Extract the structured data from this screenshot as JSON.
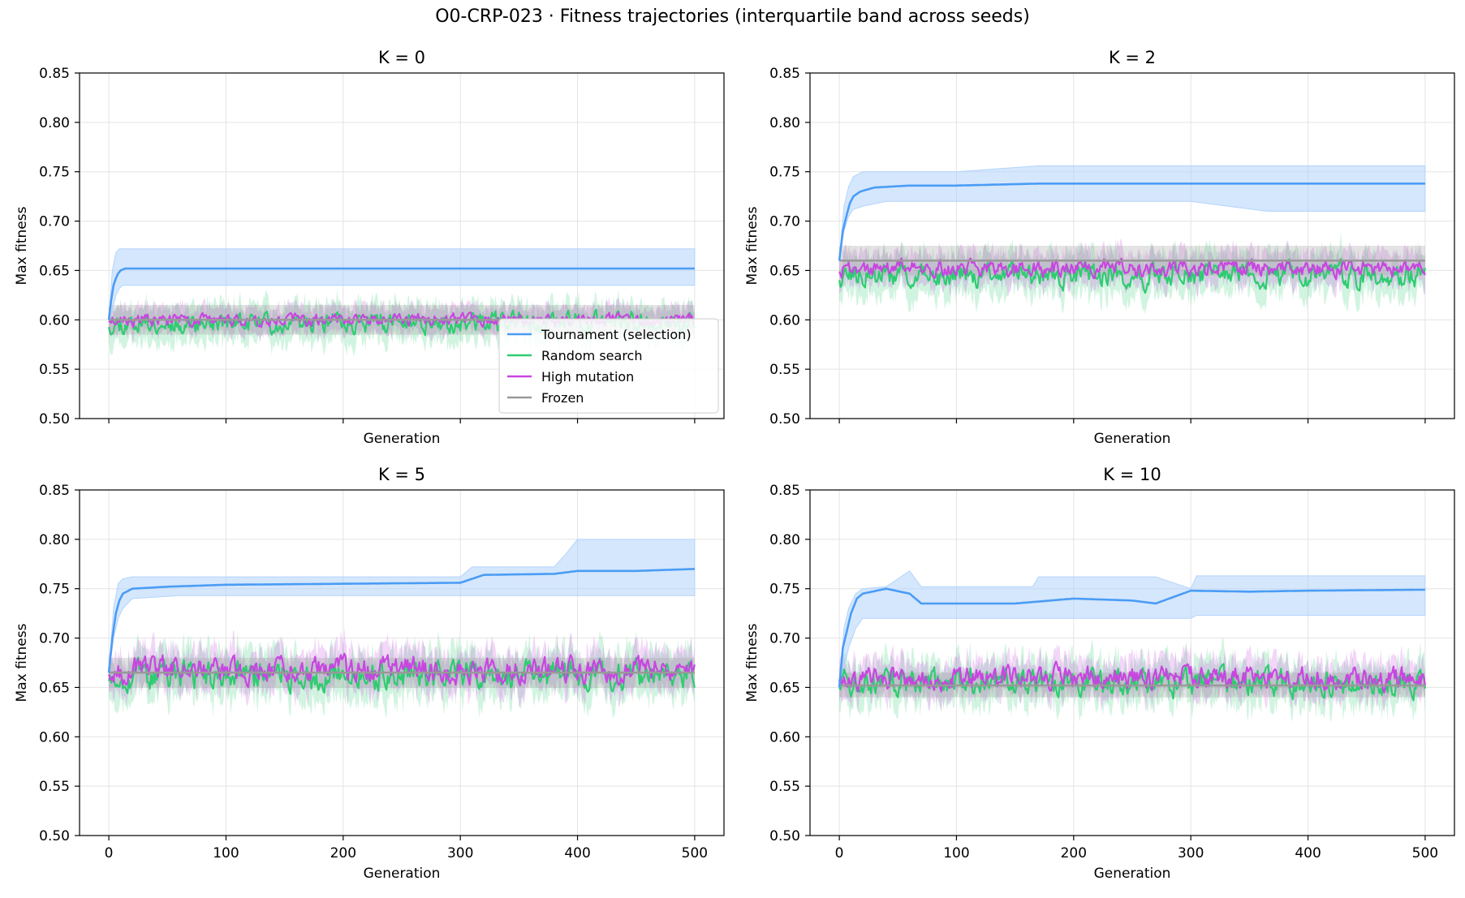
{
  "figure": {
    "title": "O0-CRP-023 · Fitness trajectories (interquartile band across seeds)"
  },
  "colors": {
    "tournament": "#4a9cf5",
    "tournament_band": "#b3d4fb",
    "random": "#2ecc71",
    "high_mutation": "#c846e0",
    "frozen": "#999999",
    "grid": "#e3e3e3"
  },
  "legend": {
    "placement": "lower right (K = 0 panel)",
    "entries": [
      "Tournament (selection)",
      "Random search",
      "High mutation",
      "Frozen"
    ]
  },
  "chart_data": [
    {
      "type": "line",
      "title": "K = 0",
      "xlabel": "Generation",
      "ylabel": "Max fitness",
      "xlim": [
        -25,
        525
      ],
      "ylim": [
        0.5,
        0.85
      ],
      "xticks": [
        0,
        100,
        200,
        300,
        400,
        500
      ],
      "yticks": [
        0.5,
        0.55,
        0.6,
        0.65,
        0.7,
        0.75,
        0.8,
        0.85
      ],
      "show_xtick_labels": false,
      "grid": true,
      "band": {
        "x": [
          0,
          3,
          6,
          9,
          12,
          20,
          500
        ],
        "lower": [
          0.6,
          0.61,
          0.625,
          0.632,
          0.635,
          0.635,
          0.635
        ],
        "upper": [
          0.6,
          0.65,
          0.668,
          0.672,
          0.672,
          0.672,
          0.672
        ]
      },
      "series": [
        {
          "name": "Tournament (selection)",
          "x": [
            0,
            2,
            4,
            6,
            8,
            10,
            14,
            20,
            40,
            100,
            500
          ],
          "y": [
            0.6,
            0.62,
            0.635,
            0.642,
            0.647,
            0.65,
            0.652,
            0.652,
            0.652,
            0.652,
            0.652
          ]
        },
        {
          "name": "Random search",
          "level": 0.597,
          "noise": 0.01,
          "band_noise": 0.022,
          "seed": 11
        },
        {
          "name": "High mutation",
          "level": 0.6,
          "noise": 0.006,
          "band_noise": 0.016,
          "seed": 23
        },
        {
          "name": "Frozen",
          "level": 0.6,
          "band_lower": 0.585,
          "band_upper": 0.615
        }
      ]
    },
    {
      "type": "line",
      "title": "K = 2",
      "xlabel": "Generation",
      "ylabel": "Max fitness",
      "xlim": [
        -25,
        525
      ],
      "ylim": [
        0.5,
        0.85
      ],
      "xticks": [
        0,
        100,
        200,
        300,
        400,
        500
      ],
      "yticks": [
        0.5,
        0.55,
        0.6,
        0.65,
        0.7,
        0.75,
        0.8,
        0.85
      ],
      "show_xtick_labels": false,
      "grid": true,
      "band": {
        "x": [
          0,
          4,
          8,
          12,
          20,
          40,
          100,
          170,
          300,
          365,
          420,
          500
        ],
        "lower": [
          0.66,
          0.69,
          0.705,
          0.712,
          0.715,
          0.72,
          0.72,
          0.72,
          0.72,
          0.71,
          0.71,
          0.71
        ],
        "upper": [
          0.66,
          0.715,
          0.735,
          0.745,
          0.75,
          0.75,
          0.75,
          0.756,
          0.756,
          0.756,
          0.756,
          0.756
        ]
      },
      "series": [
        {
          "name": "Tournament (selection)",
          "x": [
            0,
            3,
            6,
            9,
            12,
            18,
            30,
            60,
            100,
            170,
            300,
            500
          ],
          "y": [
            0.66,
            0.69,
            0.705,
            0.718,
            0.725,
            0.73,
            0.734,
            0.736,
            0.736,
            0.738,
            0.738,
            0.738
          ]
        },
        {
          "name": "Random search",
          "level": 0.645,
          "noise": 0.012,
          "band_noise": 0.025,
          "seed": 37
        },
        {
          "name": "High mutation",
          "level": 0.652,
          "noise": 0.008,
          "band_noise": 0.02,
          "seed": 41
        },
        {
          "name": "Frozen",
          "level": 0.66,
          "band_lower": 0.645,
          "band_upper": 0.675
        }
      ]
    },
    {
      "type": "line",
      "title": "K = 5",
      "xlabel": "Generation",
      "ylabel": "Max fitness",
      "xlim": [
        -25,
        525
      ],
      "ylim": [
        0.5,
        0.85
      ],
      "xticks": [
        0,
        100,
        200,
        300,
        400,
        500
      ],
      "yticks": [
        0.5,
        0.55,
        0.6,
        0.65,
        0.7,
        0.75,
        0.8,
        0.85
      ],
      "show_xtick_labels": true,
      "grid": true,
      "band": {
        "x": [
          0,
          4,
          8,
          12,
          20,
          60,
          300,
          310,
          380,
          390,
          400,
          500
        ],
        "lower": [
          0.665,
          0.7,
          0.72,
          0.73,
          0.74,
          0.743,
          0.743,
          0.743,
          0.743,
          0.743,
          0.743,
          0.743
        ],
        "upper": [
          0.665,
          0.73,
          0.755,
          0.76,
          0.762,
          0.762,
          0.762,
          0.772,
          0.772,
          0.785,
          0.8,
          0.8
        ]
      },
      "series": [
        {
          "name": "Tournament (selection)",
          "x": [
            0,
            3,
            6,
            9,
            12,
            20,
            50,
            100,
            200,
            300,
            310,
            320,
            380,
            400,
            450,
            500
          ],
          "y": [
            0.665,
            0.7,
            0.725,
            0.738,
            0.745,
            0.75,
            0.752,
            0.754,
            0.755,
            0.756,
            0.76,
            0.764,
            0.765,
            0.768,
            0.768,
            0.77
          ]
        },
        {
          "name": "Random search",
          "level": 0.662,
          "noise": 0.014,
          "band_noise": 0.028,
          "seed": 53
        },
        {
          "name": "High mutation",
          "level": 0.668,
          "noise": 0.012,
          "band_noise": 0.024,
          "seed": 67
        },
        {
          "name": "Frozen",
          "level": 0.665,
          "band_lower": 0.65,
          "band_upper": 0.68
        }
      ]
    },
    {
      "type": "line",
      "title": "K = 10",
      "xlabel": "Generation",
      "ylabel": "Max fitness",
      "xlim": [
        -25,
        525
      ],
      "ylim": [
        0.5,
        0.85
      ],
      "xticks": [
        0,
        100,
        200,
        300,
        400,
        500
      ],
      "yticks": [
        0.5,
        0.55,
        0.6,
        0.65,
        0.7,
        0.75,
        0.8,
        0.85
      ],
      "show_xtick_labels": true,
      "grid": true,
      "band": {
        "x": [
          0,
          4,
          8,
          14,
          20,
          40,
          60,
          70,
          165,
          170,
          270,
          300,
          305,
          500
        ],
        "lower": [
          0.65,
          0.67,
          0.69,
          0.71,
          0.72,
          0.72,
          0.72,
          0.72,
          0.72,
          0.72,
          0.72,
          0.72,
          0.723,
          0.723
        ],
        "upper": [
          0.65,
          0.71,
          0.73,
          0.745,
          0.75,
          0.752,
          0.768,
          0.752,
          0.752,
          0.762,
          0.762,
          0.75,
          0.763,
          0.763
        ]
      },
      "series": [
        {
          "name": "Tournament (selection)",
          "x": [
            0,
            3,
            6,
            10,
            15,
            20,
            40,
            60,
            70,
            100,
            150,
            200,
            250,
            270,
            300,
            350,
            400,
            500
          ],
          "y": [
            0.65,
            0.69,
            0.705,
            0.725,
            0.74,
            0.745,
            0.75,
            0.745,
            0.735,
            0.735,
            0.735,
            0.74,
            0.738,
            0.735,
            0.748,
            0.747,
            0.748,
            0.749
          ]
        },
        {
          "name": "Random search",
          "level": 0.655,
          "noise": 0.013,
          "band_noise": 0.026,
          "seed": 71
        },
        {
          "name": "High mutation",
          "level": 0.66,
          "noise": 0.011,
          "band_noise": 0.022,
          "seed": 83
        },
        {
          "name": "Frozen",
          "level": 0.652,
          "band_lower": 0.64,
          "band_upper": 0.665
        }
      ]
    }
  ]
}
